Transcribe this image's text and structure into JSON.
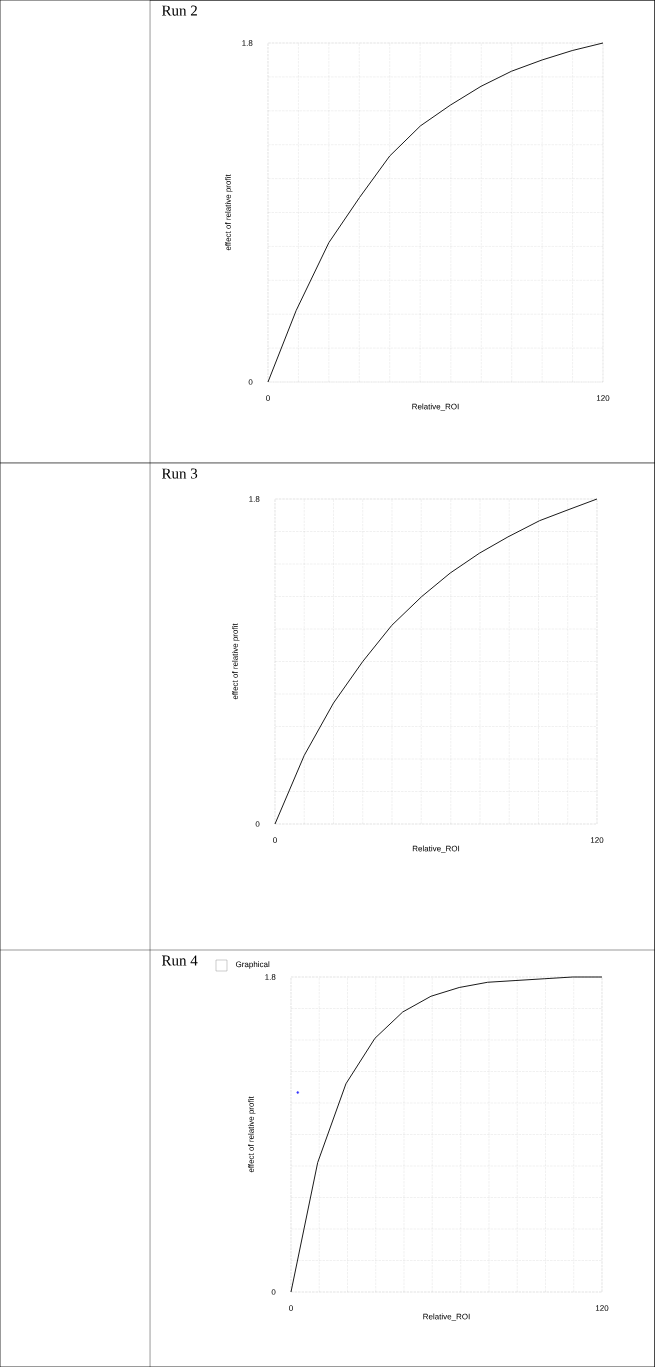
{
  "chart_data": [
    {
      "type": "line",
      "title": "Run 2",
      "xlabel": "Relative_ROI",
      "ylabel": "effect of relative profit",
      "xlim": [
        0,
        120
      ],
      "ylim": [
        0,
        1.8
      ],
      "xticks": [
        0,
        {
          "value": 10.9,
          "label": null
        },
        {
          "value": 21.8,
          "label": null
        },
        {
          "value": 32.7,
          "label": null
        },
        {
          "value": 43.6,
          "label": null
        },
        {
          "value": 54.5,
          "label": null
        },
        {
          "value": 65.5,
          "label": null
        },
        {
          "value": 76.4,
          "label": null
        },
        {
          "value": 87.3,
          "label": null
        },
        {
          "value": 98.2,
          "label": null
        },
        {
          "value": 109.1,
          "label": null
        },
        120
      ],
      "yticks": [
        0,
        {
          "value": 0.18,
          "label": null
        },
        {
          "value": 0.36,
          "label": null
        },
        {
          "value": 0.54,
          "label": null
        },
        {
          "value": 0.72,
          "label": null
        },
        {
          "value": 0.9,
          "label": null
        },
        {
          "value": 1.08,
          "label": null
        },
        {
          "value": 1.26,
          "label": null
        },
        {
          "value": 1.44,
          "label": null
        },
        {
          "value": 1.62,
          "label": null
        },
        1.8
      ],
      "grid": true,
      "series": [
        {
          "color": "#000000",
          "x": [
            0,
            10.1,
            21.8,
            32.8,
            43.6,
            54.6,
            65.3,
            76.3,
            87.2,
            98.2,
            109,
            120
          ],
          "values": [
            0,
            0.38,
            0.74,
            0.98,
            1.2,
            1.36,
            1.47,
            1.57,
            1.65,
            1.71,
            1.76,
            1.8
          ]
        }
      ]
    },
    {
      "type": "line",
      "title": "Run 3",
      "xlabel": "Relative_ROI",
      "ylabel": "effect of relative profit",
      "xlim": [
        0,
        120
      ],
      "ylim": [
        0,
        1.8
      ],
      "xticks": [
        0,
        {
          "value": 10.9,
          "label": null
        },
        {
          "value": 21.8,
          "label": null
        },
        {
          "value": 32.7,
          "label": null
        },
        {
          "value": 43.6,
          "label": null
        },
        {
          "value": 54.5,
          "label": null
        },
        {
          "value": 65.5,
          "label": null
        },
        {
          "value": 76.4,
          "label": null
        },
        {
          "value": 87.3,
          "label": null
        },
        {
          "value": 98.2,
          "label": null
        },
        {
          "value": 109.1,
          "label": null
        },
        120
      ],
      "yticks": [
        0,
        {
          "value": 0.18,
          "label": null
        },
        {
          "value": 0.36,
          "label": null
        },
        {
          "value": 0.54,
          "label": null
        },
        {
          "value": 0.72,
          "label": null
        },
        {
          "value": 0.9,
          "label": null
        },
        {
          "value": 1.08,
          "label": null
        },
        {
          "value": 1.26,
          "label": null
        },
        {
          "value": 1.44,
          "label": null
        },
        {
          "value": 1.62,
          "label": null
        },
        1.8
      ],
      "grid": true,
      "series": [
        {
          "color": "#000000",
          "x": [
            0,
            10.9,
            21.8,
            32.7,
            43.5,
            54.7,
            65.3,
            76.2,
            86.8,
            98.6,
            109.2,
            120
          ],
          "values": [
            0,
            0.38,
            0.67,
            0.9,
            1.1,
            1.26,
            1.39,
            1.5,
            1.59,
            1.68,
            1.74,
            1.8
          ]
        }
      ]
    },
    {
      "type": "line",
      "title": "Run 4",
      "xlabel": "Relative_ROI",
      "ylabel": "effect of relative profit",
      "xlim": [
        0,
        120
      ],
      "ylim": [
        0,
        1.8
      ],
      "xticks": [
        0,
        {
          "value": 10.9,
          "label": null
        },
        {
          "value": 21.8,
          "label": null
        },
        {
          "value": 32.7,
          "label": null
        },
        {
          "value": 43.6,
          "label": null
        },
        {
          "value": 54.5,
          "label": null
        },
        {
          "value": 65.5,
          "label": null
        },
        {
          "value": 76.4,
          "label": null
        },
        {
          "value": 87.3,
          "label": null
        },
        {
          "value": 98.2,
          "label": null
        },
        {
          "value": 109.1,
          "label": null
        },
        120
      ],
      "yticks": [
        0,
        {
          "value": 0.18,
          "label": null
        },
        {
          "value": 0.36,
          "label": null
        },
        {
          "value": 0.54,
          "label": null
        },
        {
          "value": 0.72,
          "label": null
        },
        {
          "value": 0.9,
          "label": null
        },
        {
          "value": 1.08,
          "label": null
        },
        {
          "value": 1.26,
          "label": null
        },
        {
          "value": 1.44,
          "label": null
        },
        {
          "value": 1.62,
          "label": null
        },
        1.8
      ],
      "grid": true,
      "annotations": [
        "Graphical"
      ],
      "series": [
        {
          "color": "#000000",
          "x": [
            0,
            10.3,
            21.2,
            32.4,
            43.1,
            54,
            64.9,
            75.9,
            86.8,
            97.7,
            108.7,
            120
          ],
          "values": [
            0,
            0.74,
            1.19,
            1.45,
            1.6,
            1.69,
            1.74,
            1.77,
            1.78,
            1.79,
            1.8,
            1.8
          ]
        },
        {
          "type": "scatter",
          "color": "#3333ff",
          "x": [
            2.6
          ],
          "values": [
            1.14
          ]
        }
      ]
    }
  ]
}
